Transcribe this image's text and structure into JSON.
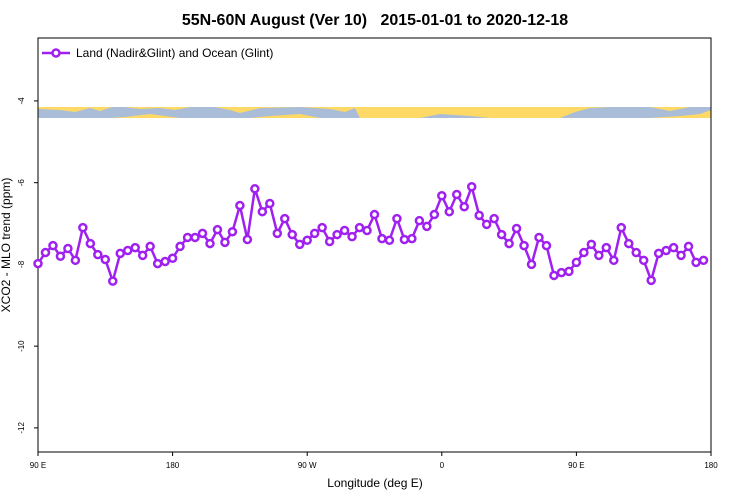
{
  "chart_data": {
    "type": "line",
    "title": "55N-60N August (Ver 10)   2015-01-01 to 2020-12-18",
    "x_label": "Longitude (deg E)",
    "y_label": "XCO2 - MLO trend (ppm)",
    "x": [
      90,
      95,
      100,
      105,
      110,
      115,
      120,
      125,
      130,
      135,
      140,
      145,
      150,
      155,
      160,
      165,
      170,
      175,
      180,
      185,
      190,
      195,
      200,
      205,
      210,
      215,
      220,
      225,
      230,
      235,
      240,
      245,
      250,
      255,
      260,
      265,
      270,
      275,
      280,
      285,
      290,
      295,
      300,
      305,
      310,
      315,
      320,
      325,
      330,
      335,
      340,
      345,
      350,
      355,
      360,
      365,
      370,
      375,
      380,
      385,
      390,
      395,
      400,
      405,
      410,
      415,
      420,
      425,
      430,
      435,
      440,
      445,
      450,
      455,
      460,
      465,
      470,
      475,
      480,
      485,
      490,
      495,
      500,
      505,
      510,
      515,
      520,
      525,
      530,
      535
    ],
    "series": [
      {
        "name": "Land (Nadir&Glint) and Ocean (Glint)",
        "color": "#a020f0",
        "values": [
          -7.98,
          -7.71,
          -7.54,
          -7.8,
          -7.61,
          -7.9,
          -7.1,
          -7.49,
          -7.76,
          -7.88,
          -8.41,
          -7.73,
          -7.66,
          -7.59,
          -7.78,
          -7.56,
          -7.98,
          -7.93,
          -7.85,
          -7.56,
          -7.34,
          -7.34,
          -7.24,
          -7.49,
          -7.15,
          -7.46,
          -7.2,
          -6.56,
          -7.39,
          -6.15,
          -6.71,
          -6.51,
          -7.24,
          -6.88,
          -7.27,
          -7.51,
          -7.41,
          -7.24,
          -7.1,
          -7.44,
          -7.27,
          -7.17,
          -7.32,
          -7.1,
          -7.17,
          -6.78,
          -7.37,
          -7.41,
          -6.88,
          -7.39,
          -7.37,
          -6.93,
          -7.07,
          -6.78,
          -6.32,
          -6.71,
          -6.29,
          -6.59,
          -6.1,
          -6.8,
          -7.02,
          -6.88,
          -7.27,
          -7.49,
          -7.12,
          -7.54,
          -8.0,
          -7.34,
          -7.54,
          -8.27,
          -8.2,
          -8.17,
          -7.95,
          -7.71,
          -7.51,
          -7.78,
          -7.59,
          -7.9,
          -7.1,
          -7.49,
          -7.71,
          -7.9,
          -8.39,
          -7.73,
          -7.66,
          -7.59,
          -7.78,
          -7.56,
          -7.95,
          -7.9
        ]
      }
    ],
    "xlim": [
      90,
      540
    ],
    "xticks": [
      {
        "value": 90,
        "label": "90 E"
      },
      180,
      {
        "value": 270,
        "label": "90 W"
      },
      {
        "value": 360,
        "label": "0"
      },
      {
        "value": 450,
        "label": "90 E"
      },
      {
        "value": 540,
        "label": "180"
      }
    ],
    "ylim": [
      -12.59,
      -2.46
    ],
    "yticks": [
      -4,
      -6,
      -8,
      -10,
      -12
    ],
    "legend": "top-left"
  }
}
